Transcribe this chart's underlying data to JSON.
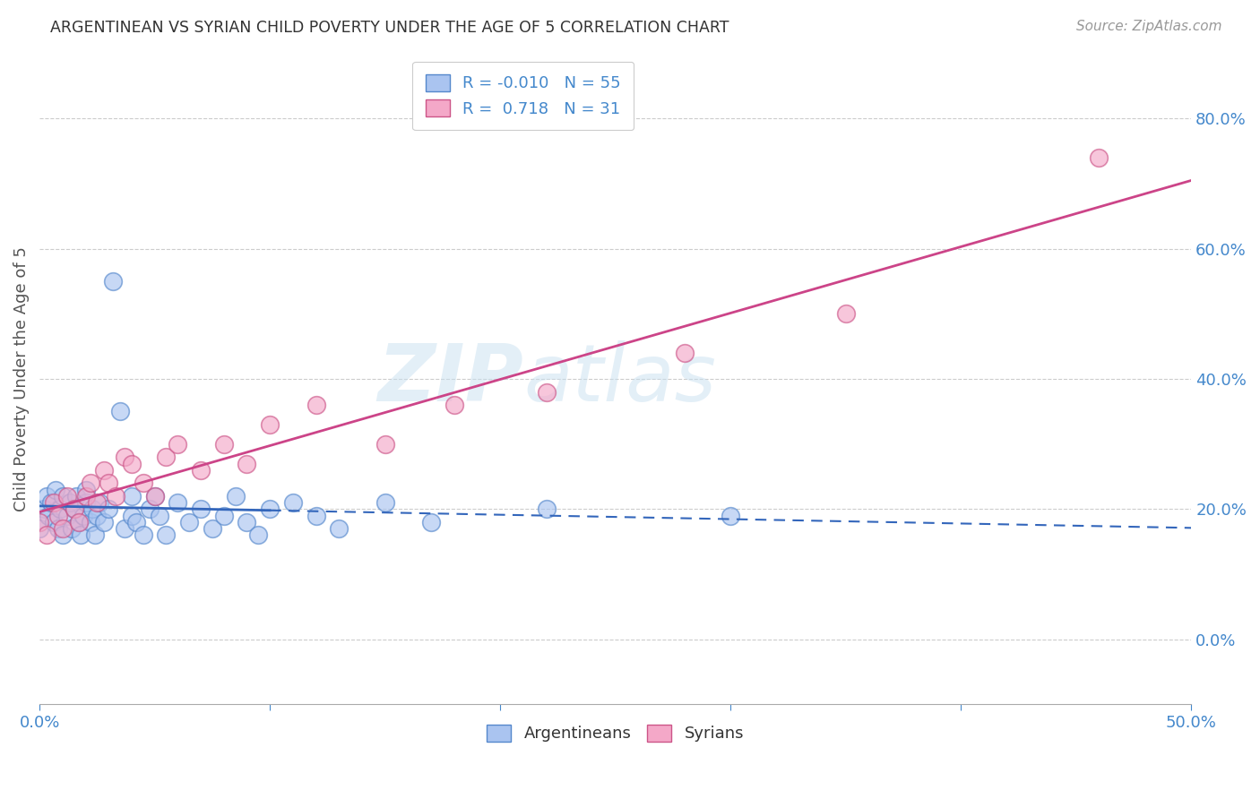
{
  "title": "ARGENTINEAN VS SYRIAN CHILD POVERTY UNDER THE AGE OF 5 CORRELATION CHART",
  "source": "Source: ZipAtlas.com",
  "ylabel": "Child Poverty Under the Age of 5",
  "xlim": [
    0.0,
    0.5
  ],
  "ylim": [
    -0.1,
    0.9
  ],
  "yticks": [
    0.0,
    0.2,
    0.4,
    0.6,
    0.8
  ],
  "xticks": [
    0.0,
    0.1,
    0.2,
    0.3,
    0.4,
    0.5
  ],
  "argentina_color": "#aac4f0",
  "argentina_edge": "#5588cc",
  "syria_color": "#f4a8c8",
  "syria_edge": "#cc5588",
  "argentina_R": -0.01,
  "argentina_N": 55,
  "syria_R": 0.718,
  "syria_N": 31,
  "argentina_x": [
    0.0,
    0.002,
    0.003,
    0.004,
    0.005,
    0.006,
    0.007,
    0.008,
    0.009,
    0.01,
    0.01,
    0.012,
    0.013,
    0.014,
    0.015,
    0.016,
    0.017,
    0.018,
    0.019,
    0.02,
    0.02,
    0.022,
    0.023,
    0.024,
    0.025,
    0.026,
    0.028,
    0.03,
    0.032,
    0.035,
    0.037,
    0.04,
    0.04,
    0.042,
    0.045,
    0.048,
    0.05,
    0.052,
    0.055,
    0.06,
    0.065,
    0.07,
    0.075,
    0.08,
    0.085,
    0.09,
    0.095,
    0.1,
    0.11,
    0.12,
    0.13,
    0.15,
    0.17,
    0.22,
    0.3
  ],
  "argentina_y": [
    0.17,
    0.2,
    0.22,
    0.19,
    0.21,
    0.18,
    0.23,
    0.17,
    0.2,
    0.22,
    0.16,
    0.19,
    0.21,
    0.17,
    0.2,
    0.22,
    0.18,
    0.16,
    0.19,
    0.21,
    0.23,
    0.18,
    0.2,
    0.16,
    0.19,
    0.21,
    0.18,
    0.2,
    0.55,
    0.35,
    0.17,
    0.19,
    0.22,
    0.18,
    0.16,
    0.2,
    0.22,
    0.19,
    0.16,
    0.21,
    0.18,
    0.2,
    0.17,
    0.19,
    0.22,
    0.18,
    0.16,
    0.2,
    0.21,
    0.19,
    0.17,
    0.21,
    0.18,
    0.2,
    0.19
  ],
  "syria_x": [
    0.0,
    0.003,
    0.006,
    0.008,
    0.01,
    0.012,
    0.015,
    0.017,
    0.02,
    0.022,
    0.025,
    0.028,
    0.03,
    0.033,
    0.037,
    0.04,
    0.045,
    0.05,
    0.055,
    0.06,
    0.07,
    0.08,
    0.09,
    0.1,
    0.12,
    0.15,
    0.18,
    0.22,
    0.28,
    0.35,
    0.46
  ],
  "syria_y": [
    0.18,
    0.16,
    0.21,
    0.19,
    0.17,
    0.22,
    0.2,
    0.18,
    0.22,
    0.24,
    0.21,
    0.26,
    0.24,
    0.22,
    0.28,
    0.27,
    0.24,
    0.22,
    0.28,
    0.3,
    0.26,
    0.3,
    0.27,
    0.33,
    0.36,
    0.3,
    0.36,
    0.38,
    0.44,
    0.5,
    0.74
  ],
  "watermark_zip": "ZIP",
  "watermark_atlas": "atlas",
  "trendline_argentina_color": "#3366bb",
  "trendline_syria_color": "#cc4488",
  "grid_color": "#cccccc",
  "title_color": "#333333",
  "axis_label_color": "#555555",
  "tick_label_color": "#4488cc",
  "legend_label_color": "#4488cc",
  "argentina_trendline_x_solid_end": 0.1,
  "watermark_color": "#c8e0f0",
  "watermark_alpha": 0.5
}
